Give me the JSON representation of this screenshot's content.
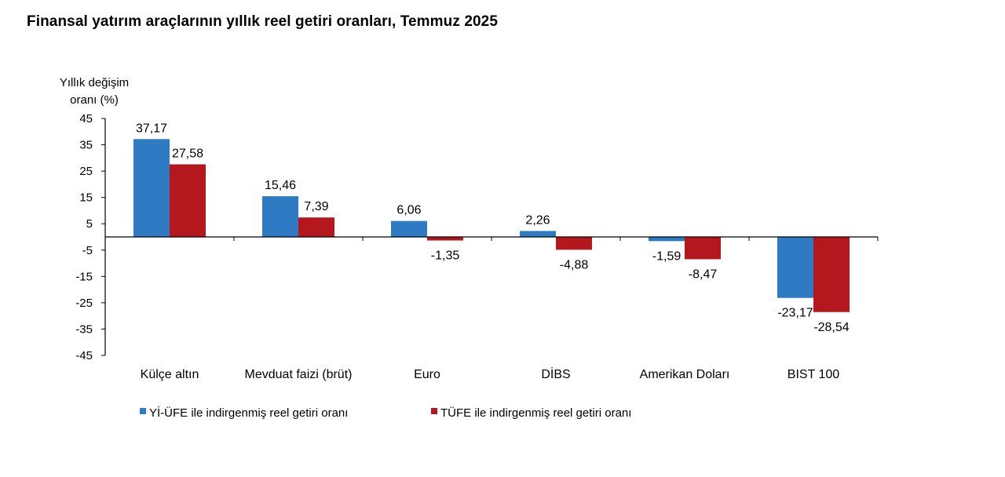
{
  "chart_data": {
    "type": "bar",
    "title": "Finansal yatırım araçlarının yıllık reel getiri oranları, Temmuz 2025",
    "ylabel_lines": [
      "Yıllık değişim",
      "oranı (%)"
    ],
    "xlabel": "",
    "ylim": [
      -45,
      45
    ],
    "yticks": [
      45,
      35,
      25,
      15,
      5,
      -5,
      -15,
      -25,
      -35,
      -45
    ],
    "categories": [
      "Külçe altın",
      "Mevduat faizi (brüt)",
      "Euro",
      "DİBS",
      "Amerikan Doları",
      "BIST 100"
    ],
    "series": [
      {
        "name": "Yİ-ÜFE ile indirgenmiş reel getiri oranı",
        "color": "#2E7BC4",
        "values": [
          37.17,
          15.46,
          6.06,
          2.26,
          -1.59,
          -23.17
        ],
        "labels": [
          "37,17",
          "15,46",
          "6,06",
          "2,26",
          "-1,59",
          "-23,17"
        ]
      },
      {
        "name": "TÜFE ile indirgenmiş reel getiri oranı",
        "color": "#B5171E",
        "values": [
          27.58,
          7.39,
          -1.35,
          -4.88,
          -8.47,
          -28.54
        ],
        "labels": [
          "27,58",
          "7,39",
          "-1,35",
          "-4,88",
          "-8,47",
          "-28,54"
        ]
      }
    ],
    "legend_position": "bottom-left"
  }
}
